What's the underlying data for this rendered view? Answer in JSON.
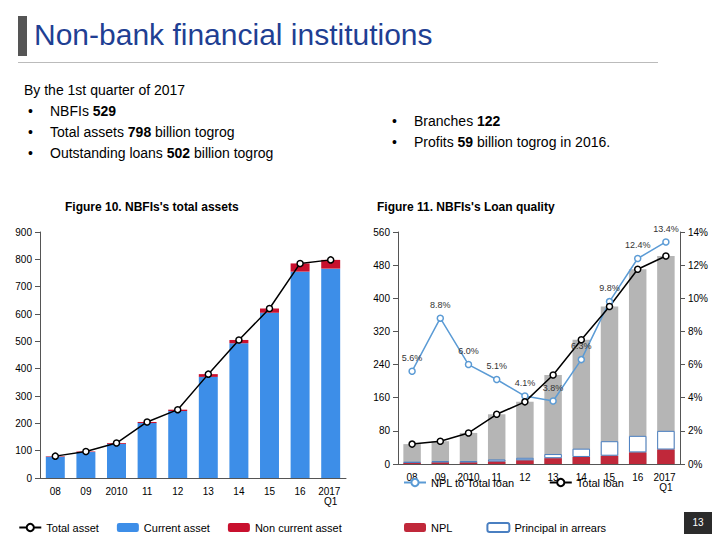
{
  "slide": {
    "title": "Non-bank financial institutions",
    "intro": "By the 1st quarter of 2017",
    "bullets_left": [
      {
        "before": "NBFIs ",
        "bold": "529",
        "after": ""
      },
      {
        "before": "Total assets ",
        "bold": "798",
        "after": " billion togrog"
      },
      {
        "before": "Outstanding loans ",
        "bold": "502",
        "after": " billion togrog"
      }
    ],
    "bullets_right": [
      {
        "before": "Branches ",
        "bold": "122",
        "after": ""
      },
      {
        "before": "Profits ",
        "bold": "59",
        "after": " billion togrog in 2016."
      }
    ],
    "page_number": "13"
  },
  "chart_data": [
    {
      "type": "bar",
      "title": "Figure 10. NBFIs's total assets",
      "categories": [
        "08",
        "09",
        "2010",
        "11",
        "12",
        "13",
        "14",
        "15",
        "16",
        "2017 Q1"
      ],
      "stacked": true,
      "grid": false,
      "legend": "bottom",
      "ylim": [
        0,
        900
      ],
      "yticks": [
        0,
        100,
        200,
        300,
        400,
        500,
        600,
        700,
        800,
        900
      ],
      "series": [
        {
          "name": "Total asset",
          "type": "line",
          "color": "#000000",
          "marker": "circle",
          "values": [
            80,
            97,
            128,
            205,
            250,
            380,
            505,
            620,
            785,
            798
          ]
        },
        {
          "name": "Current asset",
          "type": "bar",
          "color": "#3d8ee8",
          "values": [
            78,
            95,
            125,
            201,
            245,
            370,
            493,
            605,
            755,
            766
          ]
        },
        {
          "name": "Non current asset",
          "type": "bar",
          "color": "#c8102e",
          "values": [
            2,
            2,
            3,
            4,
            5,
            10,
            12,
            15,
            30,
            32
          ]
        }
      ]
    },
    {
      "type": "bar",
      "title": "Figure 11. NBFIs's Loan quality",
      "categories": [
        "08",
        "09",
        "2010",
        "11",
        "12",
        "13",
        "14",
        "15",
        "16",
        "2017 Q1"
      ],
      "stacked": true,
      "grid": false,
      "legend": "bottom",
      "ylim": [
        0,
        560
      ],
      "yticks": [
        0,
        80,
        160,
        240,
        320,
        400,
        480,
        560
      ],
      "y2lim": [
        0,
        14
      ],
      "y2ticks": [
        {
          "value": 0,
          "label": "0%"
        },
        {
          "value": 2,
          "label": "2%"
        },
        {
          "value": 4,
          "label": "4%"
        },
        {
          "value": 6,
          "label": "6%"
        },
        {
          "value": 8,
          "label": "8%"
        },
        {
          "value": 10,
          "label": "10%"
        },
        {
          "value": 12,
          "label": "12%"
        },
        {
          "value": 14,
          "label": "14%"
        }
      ],
      "series": [
        {
          "name": "NPL to Total loan",
          "type": "line",
          "axis": "y2",
          "color": "#5b9bd5",
          "marker": "circle",
          "data_labels": true,
          "values": [
            5.6,
            8.8,
            6.0,
            5.1,
            4.1,
            3.8,
            6.3,
            9.8,
            12.4,
            13.4
          ],
          "value_labels": [
            "5.6%",
            "8.8%",
            "6.0%",
            "5.1%",
            "4.1%",
            "3.8%",
            "6.3%",
            "9.8%",
            "12.4%",
            "13.4%"
          ]
        },
        {
          "name": "Total loan",
          "type": "combo",
          "color": "#000000",
          "marker": "circle",
          "values": [
            48,
            55,
            75,
            120,
            150,
            215,
            300,
            380,
            470,
            502
          ]
        },
        {
          "name": "NPL",
          "type": "bar",
          "color": "#c0283a",
          "values": [
            3,
            4,
            4,
            6,
            9,
            14,
            17,
            20,
            28,
            35
          ]
        },
        {
          "name": "Principal in arrears",
          "type": "bar",
          "color": "#ffffff",
          "values": [
            2,
            3,
            3,
            5,
            6,
            10,
            20,
            35,
            40,
            45
          ]
        }
      ]
    }
  ]
}
